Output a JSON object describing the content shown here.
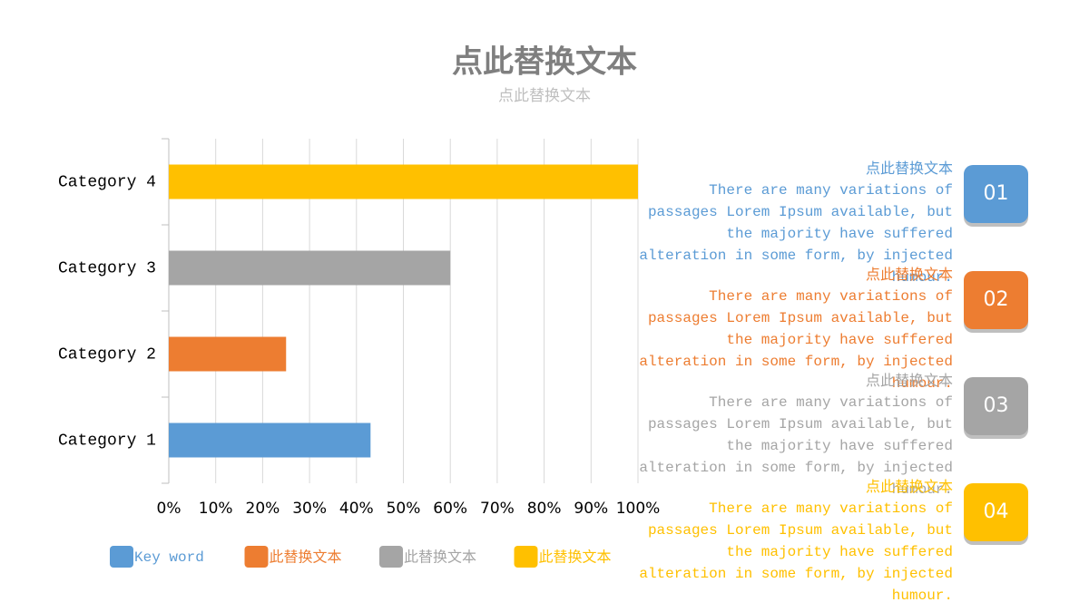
{
  "chart_data": {
    "type": "bar",
    "orientation": "horizontal",
    "title": "点此替换文本",
    "subtitle": "点此替换文本",
    "categories": [
      "Category 1",
      "Category 2",
      "Category 3",
      "Category 4"
    ],
    "values": [
      43,
      25,
      60,
      100
    ],
    "colors": [
      "#5b9bd5",
      "#ed7d31",
      "#a5a5a5",
      "#ffc000"
    ],
    "legend": [
      "Key word",
      "此替换文本",
      "此替换文本",
      "此替换文本"
    ],
    "xlim": [
      0,
      100
    ],
    "xticks": [
      {
        "value": 0,
        "label": "0%"
      },
      {
        "value": 10,
        "label": "10%"
      },
      {
        "value": 20,
        "label": "20%"
      },
      {
        "value": 30,
        "label": "30%"
      },
      {
        "value": 40,
        "label": "40%"
      },
      {
        "value": 50,
        "label": "50%"
      },
      {
        "value": 60,
        "label": "60%"
      },
      {
        "value": 70,
        "label": "70%"
      },
      {
        "value": 80,
        "label": "80%"
      },
      {
        "value": 90,
        "label": "90%"
      },
      {
        "value": 100,
        "label": "100%"
      }
    ],
    "grid": true
  },
  "items": [
    {
      "number": "01",
      "title": "点此替换文本",
      "text": "There are many variations of passages Lorem Ipsum available, but the majority have suffered alteration in some form, by injected humour.",
      "color": "#5b9bd5"
    },
    {
      "number": "02",
      "title": "点此替换文本",
      "text": "There are many variations of passages Lorem Ipsum available, but the majority have suffered alteration in some form, by injected humour.",
      "color": "#ed7d31"
    },
    {
      "number": "03",
      "title": "点此替换文本",
      "text": "There are many variations of passages Lorem Ipsum available, but the majority have suffered alteration in some form, by injected humour.",
      "color": "#a5a5a5"
    },
    {
      "number": "04",
      "title": "点此替换文本",
      "text": "There are many variations of passages Lorem Ipsum available, but the majority have suffered alteration in some form, by injected humour.",
      "color": "#ffc000"
    }
  ]
}
